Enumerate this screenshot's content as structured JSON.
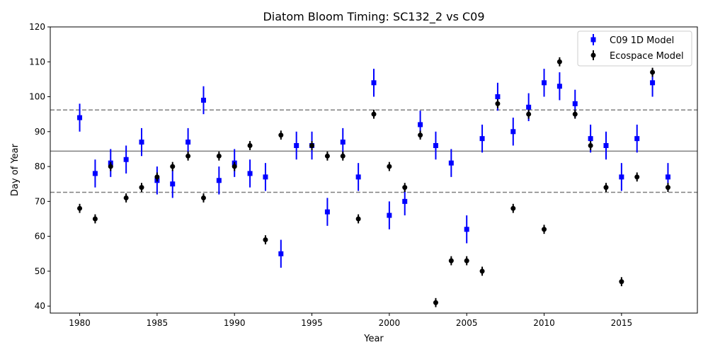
{
  "chart_data": {
    "type": "scatter",
    "title": "Diatom Bloom Timing: SC132_2 vs C09",
    "xlabel": "Year",
    "ylabel": "Day of Year",
    "xlim": [
      1978.1,
      2019.9
    ],
    "ylim": [
      38,
      120
    ],
    "x_ticks": [
      1980,
      1985,
      1990,
      1995,
      2000,
      2005,
      2010,
      2015
    ],
    "y_ticks": [
      40,
      50,
      60,
      70,
      80,
      90,
      100,
      110,
      120
    ],
    "grid": false,
    "legend_position": "top-right",
    "reference_lines": [
      {
        "y": 84.4,
        "style": "solid",
        "color": "#808080"
      },
      {
        "y": 96.2,
        "style": "dashed",
        "color": "#808080"
      },
      {
        "y": 72.6,
        "style": "dashed",
        "color": "#808080"
      }
    ],
    "series": [
      {
        "name": "C09 1D Model",
        "color": "#0000ff",
        "marker": "square",
        "error": 4,
        "x": [
          1980,
          1981,
          1982,
          1983,
          1984,
          1985,
          1986,
          1987,
          1988,
          1989,
          1990,
          1991,
          1992,
          1993,
          1994,
          1995,
          1996,
          1997,
          1998,
          1999,
          2000,
          2001,
          2002,
          2003,
          2004,
          2005,
          2006,
          2007,
          2008,
          2009,
          2010,
          2011,
          2012,
          2013,
          2014,
          2015,
          2016,
          2017,
          2018
        ],
        "y": [
          94,
          78,
          81,
          82,
          87,
          76,
          75,
          87,
          99,
          76,
          81,
          78,
          77,
          55,
          86,
          86,
          67,
          87,
          77,
          104,
          66,
          70,
          92,
          86,
          81,
          62,
          88,
          100,
          90,
          97,
          104,
          103,
          98,
          88,
          86,
          77,
          88,
          104,
          77
        ]
      },
      {
        "name": "Ecospace Model",
        "color": "#000000",
        "marker": "circle",
        "error": 1.3,
        "x": [
          1980,
          1981,
          1982,
          1983,
          1984,
          1985,
          1986,
          1987,
          1988,
          1989,
          1990,
          1991,
          1992,
          1993,
          1994,
          1995,
          1996,
          1997,
          1998,
          1999,
          2000,
          2001,
          2002,
          2003,
          2004,
          2005,
          2006,
          2007,
          2008,
          2009,
          2010,
          2011,
          2012,
          2013,
          2014,
          2015,
          2016,
          2017,
          2018
        ],
        "y": [
          68,
          65,
          80,
          71,
          74,
          77,
          80,
          83,
          71,
          83,
          80,
          86,
          59,
          89,
          null,
          86,
          83,
          83,
          65,
          95,
          80,
          74,
          89,
          41,
          53,
          53,
          50,
          98,
          68,
          95,
          62,
          110,
          95,
          86,
          74,
          47,
          77,
          107,
          74
        ]
      }
    ]
  }
}
